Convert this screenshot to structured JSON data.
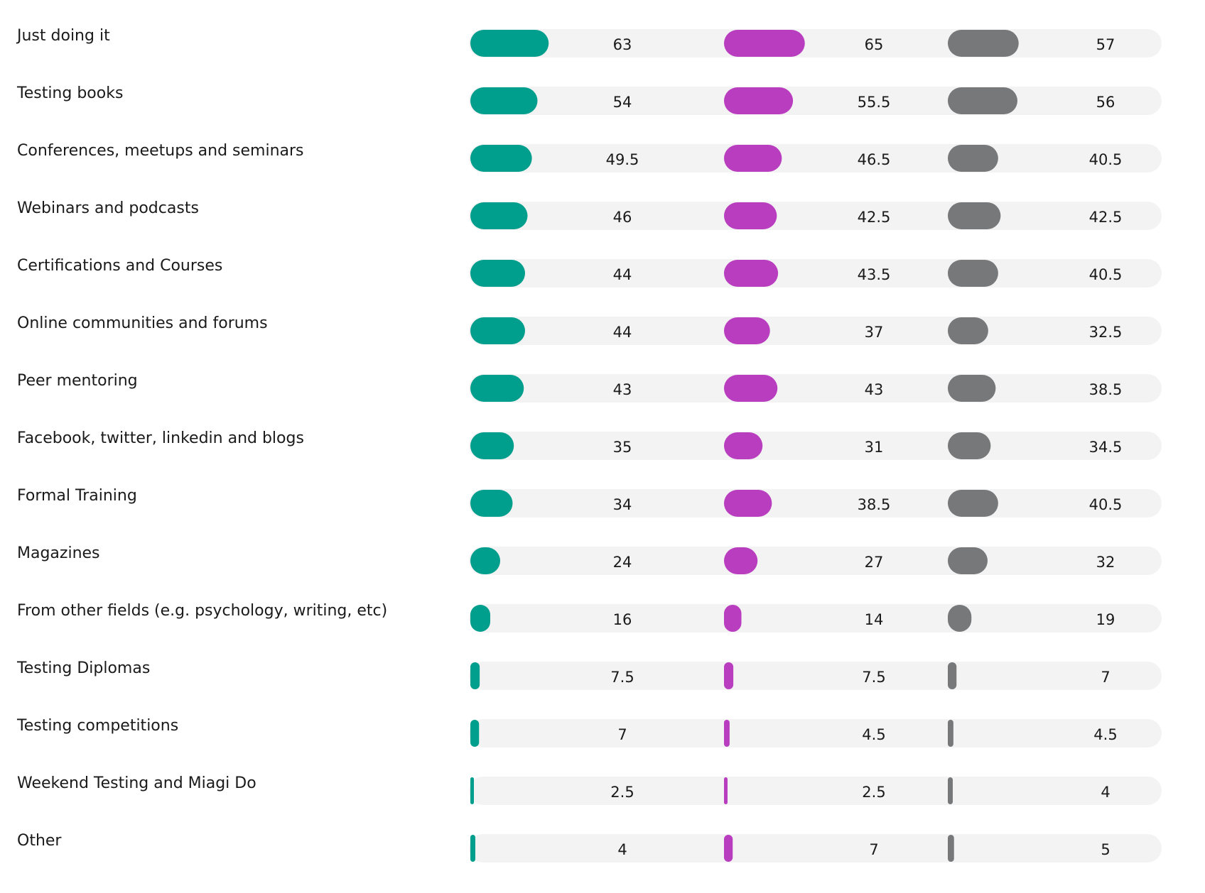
{
  "chart_data": {
    "type": "bar",
    "orientation": "horizontal",
    "categories": [
      "Just doing it",
      "Testing books",
      "Conferences, meetups and seminars",
      "Webinars and podcasts",
      "Certifications and Courses",
      "Online communities and forums",
      "Peer mentoring",
      "Facebook, twitter, linkedin and blogs",
      "Formal Training",
      "Magazines",
      "From other fields (e.g. psychology, writing, etc)",
      "Testing Diplomas",
      "Testing competitions",
      "Weekend Testing and Miagi Do",
      "Other"
    ],
    "series": [
      {
        "color": "#009e8c",
        "values": [
          63,
          54,
          49.5,
          46,
          44,
          44,
          43,
          35,
          34,
          24,
          16,
          7.5,
          7,
          2.5,
          4
        ]
      },
      {
        "color": "#b93dbf",
        "values": [
          65,
          55.5,
          46.5,
          42.5,
          43.5,
          37,
          43,
          31,
          38.5,
          27,
          14,
          7.5,
          4.5,
          2.5,
          7
        ]
      },
      {
        "color": "#76787a",
        "values": [
          57,
          56,
          40.5,
          42.5,
          40.5,
          32.5,
          38.5,
          34.5,
          40.5,
          32,
          19,
          7,
          4.5,
          4,
          5
        ]
      }
    ]
  }
}
